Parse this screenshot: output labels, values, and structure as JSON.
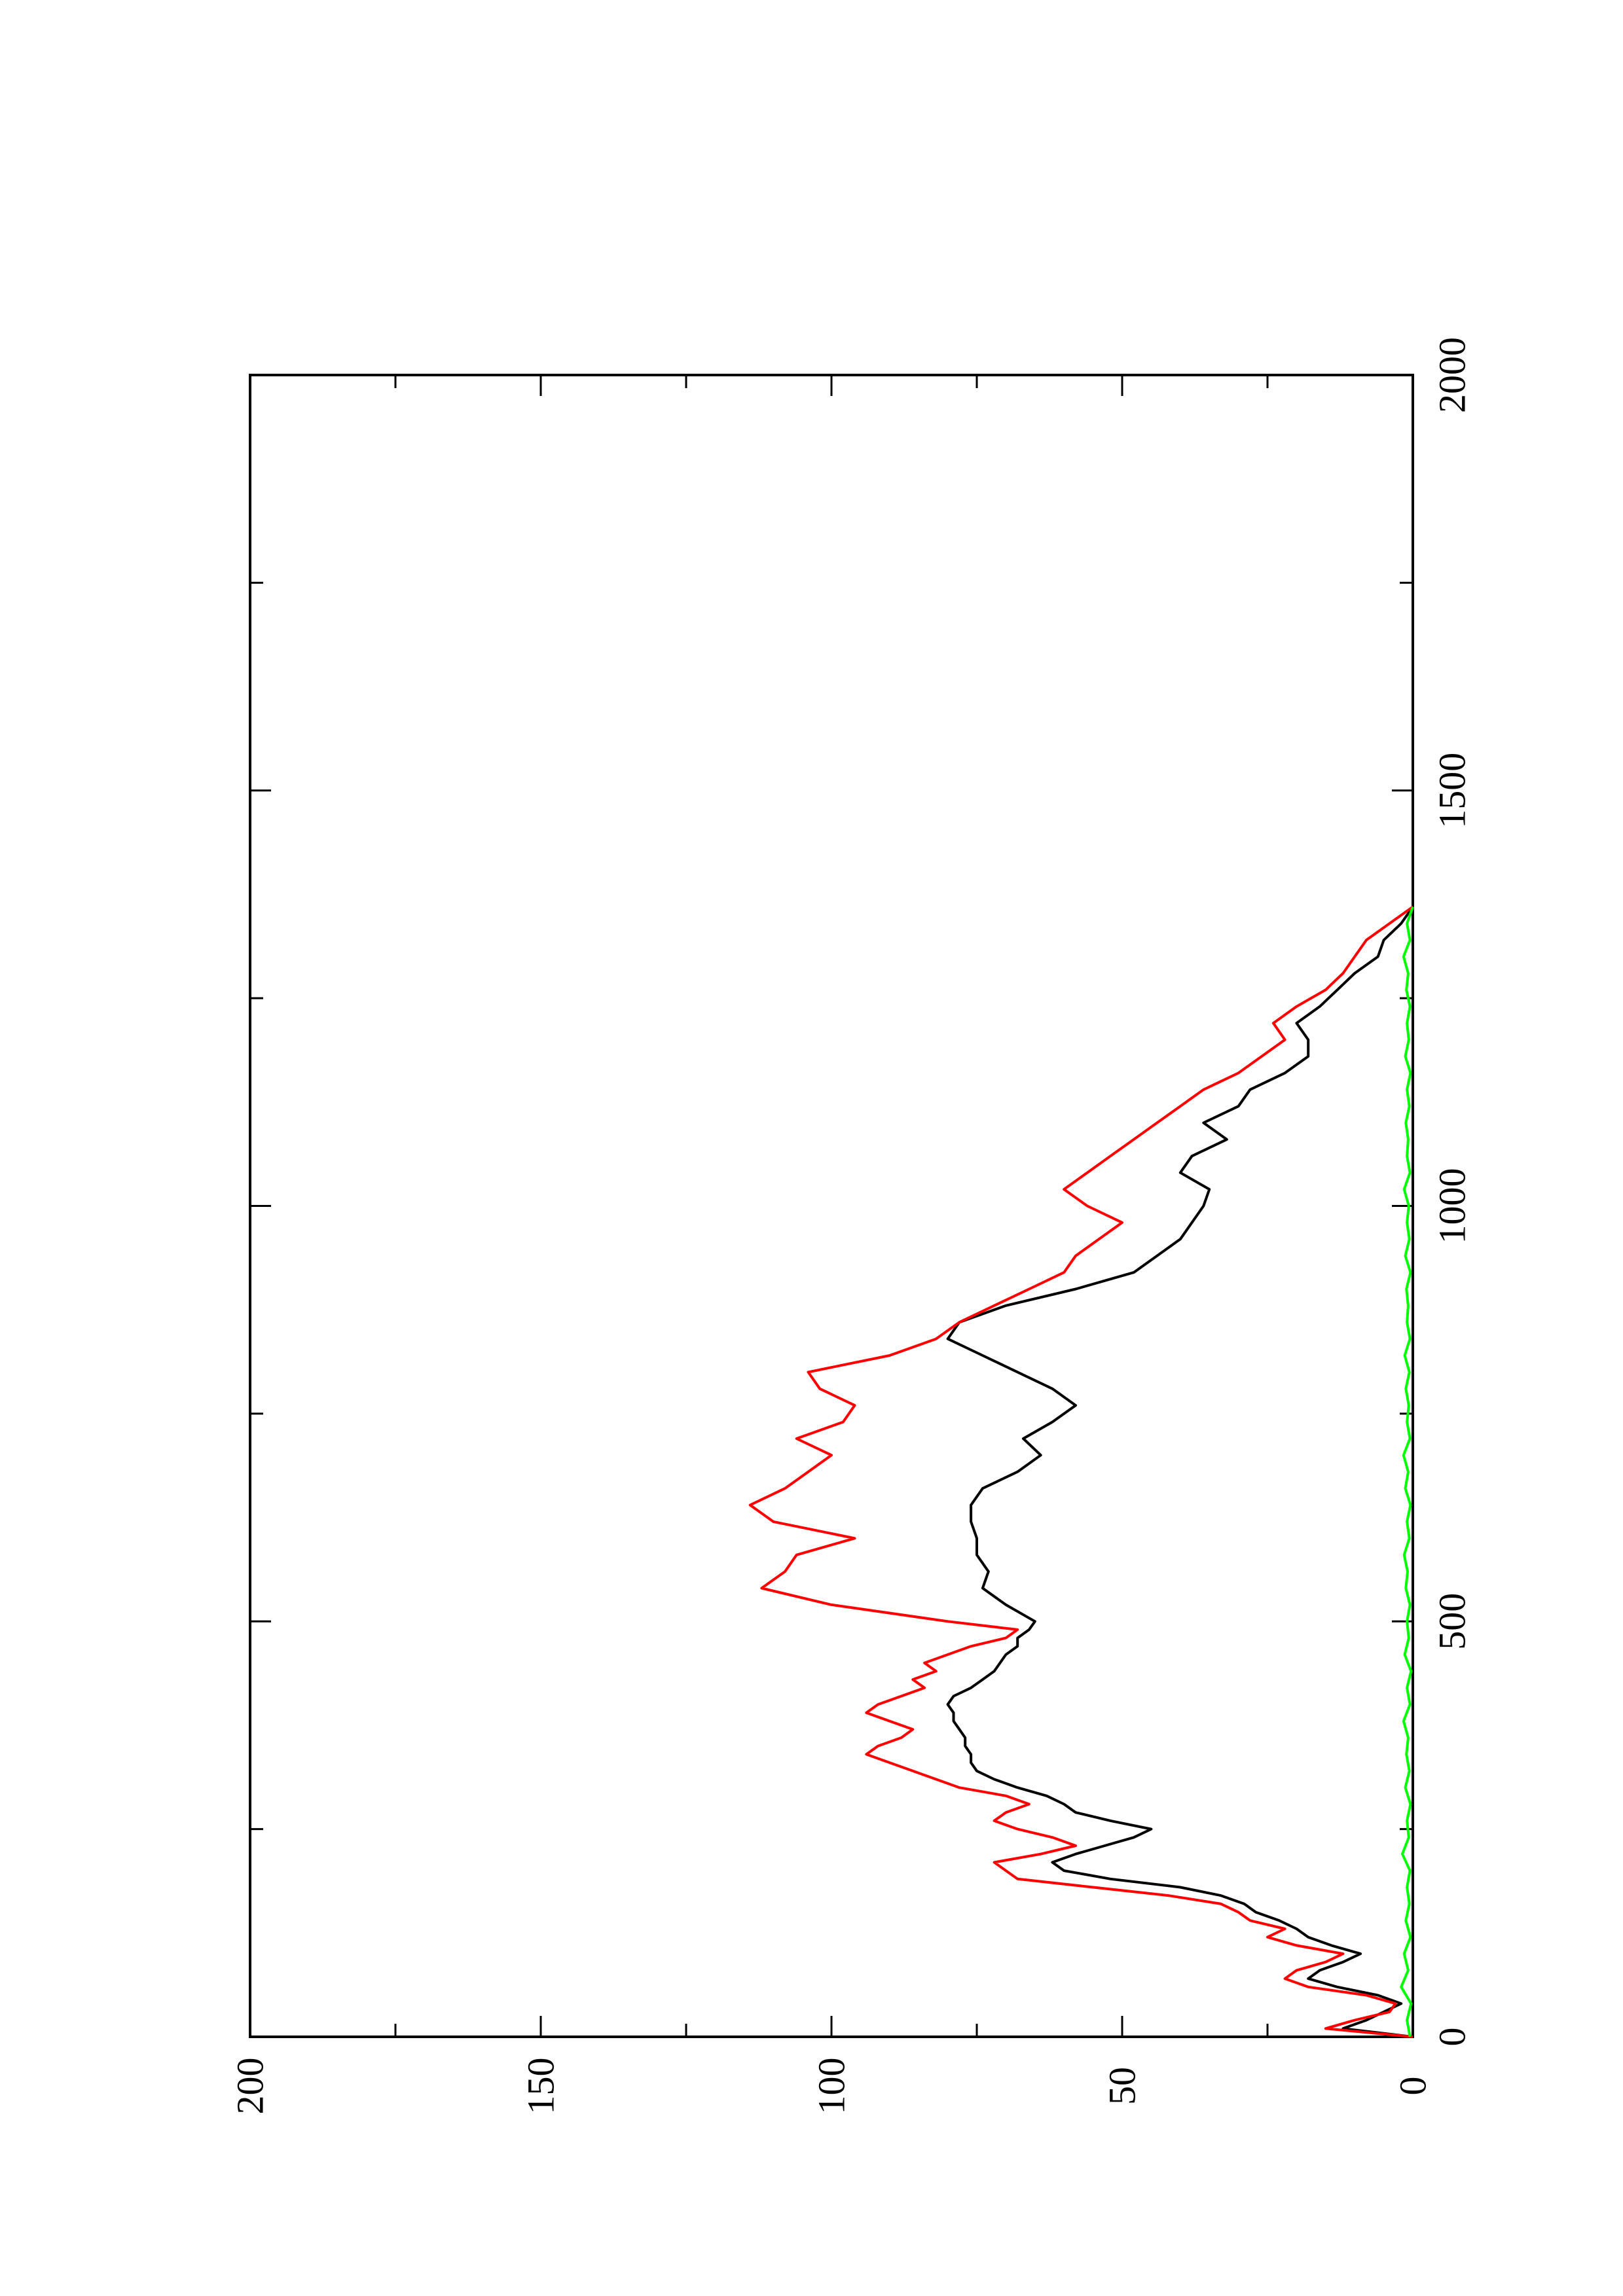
{
  "chart_data": {
    "type": "line",
    "orientation": "rotated 90 degrees counter-clockwise",
    "title": "",
    "xlabel": "",
    "ylabel": "",
    "xlim": [
      0,
      2000
    ],
    "ylim": [
      0,
      200
    ],
    "x_ticks": [
      "0",
      "500",
      "1000",
      "1500",
      "2000"
    ],
    "y_ticks": [
      "0",
      "50",
      "100",
      "150",
      "200"
    ],
    "grid": false,
    "legend": "none",
    "series": [
      {
        "color": "#000000",
        "x": [
          0,
          10,
          20,
          30,
          40,
          50,
          60,
          70,
          80,
          90,
          100,
          110,
          120,
          130,
          140,
          150,
          160,
          170,
          180,
          190,
          200,
          210,
          220,
          230,
          240,
          250,
          260,
          270,
          280,
          290,
          300,
          310,
          320,
          330,
          340,
          350,
          360,
          370,
          380,
          390,
          400,
          410,
          420,
          430,
          440,
          450,
          460,
          470,
          480,
          490,
          500,
          520,
          540,
          560,
          580,
          600,
          620,
          640,
          660,
          680,
          700,
          720,
          740,
          760,
          780,
          800,
          820,
          840,
          860,
          880,
          900,
          920,
          940,
          960,
          980,
          1000,
          1020,
          1040,
          1060,
          1080,
          1100,
          1120,
          1140,
          1160,
          1180,
          1200,
          1220,
          1240,
          1260,
          1280,
          1300,
          1320,
          1340,
          1360
        ],
        "values": [
          0,
          12,
          8,
          5,
          2,
          6,
          13,
          18,
          16,
          12,
          9,
          14,
          18,
          20,
          23,
          27,
          29,
          33,
          40,
          52,
          60,
          62,
          58,
          53,
          48,
          45,
          52,
          58,
          60,
          63,
          68,
          72,
          75,
          76,
          76,
          77,
          77,
          78,
          79,
          79,
          80,
          79,
          76,
          74,
          72,
          71,
          70,
          68,
          68,
          66,
          65,
          70,
          74,
          73,
          75,
          75,
          76,
          76,
          74,
          68,
          64,
          67,
          62,
          58,
          62,
          68,
          74,
          80,
          78,
          70,
          58,
          48,
          44,
          40,
          38,
          36,
          35,
          40,
          38,
          32,
          36,
          30,
          28,
          22,
          18,
          18,
          20,
          16,
          13,
          10,
          6,
          5,
          2,
          0
        ]
      },
      {
        "color": "#ff0000",
        "x": [
          0,
          10,
          20,
          30,
          40,
          50,
          60,
          70,
          80,
          90,
          100,
          110,
          120,
          130,
          140,
          150,
          160,
          170,
          180,
          190,
          200,
          210,
          220,
          230,
          240,
          250,
          260,
          270,
          280,
          290,
          300,
          310,
          320,
          330,
          340,
          350,
          360,
          370,
          380,
          390,
          400,
          410,
          420,
          430,
          440,
          450,
          460,
          470,
          480,
          490,
          500,
          520,
          540,
          560,
          580,
          600,
          620,
          640,
          660,
          680,
          700,
          720,
          740,
          760,
          780,
          800,
          820,
          840,
          860,
          880,
          900,
          920,
          940,
          960,
          980,
          1000,
          1020,
          1040,
          1060,
          1080,
          1100,
          1120,
          1140,
          1160,
          1180,
          1200,
          1220,
          1240,
          1260,
          1280,
          1300,
          1320,
          1340,
          1360
        ],
        "values": [
          0,
          15,
          10,
          4,
          3,
          8,
          18,
          22,
          20,
          15,
          12,
          20,
          25,
          22,
          28,
          30,
          33,
          42,
          55,
          68,
          70,
          72,
          64,
          58,
          62,
          68,
          72,
          70,
          66,
          70,
          78,
          82,
          86,
          90,
          94,
          92,
          88,
          86,
          90,
          94,
          92,
          88,
          84,
          86,
          82,
          84,
          80,
          76,
          70,
          68,
          80,
          100,
          112,
          108,
          106,
          96,
          110,
          114,
          108,
          104,
          100,
          106,
          98,
          96,
          102,
          104,
          90,
          82,
          78,
          72,
          66,
          60,
          58,
          54,
          50,
          56,
          60,
          56,
          52,
          48,
          44,
          40,
          36,
          30,
          26,
          22,
          24,
          20,
          15,
          12,
          10,
          8,
          4,
          0
        ]
      },
      {
        "color": "#00ff00",
        "x": [
          0,
          20,
          40,
          60,
          80,
          100,
          120,
          140,
          160,
          180,
          200,
          220,
          240,
          260,
          280,
          300,
          320,
          340,
          360,
          380,
          400,
          420,
          440,
          460,
          480,
          500,
          520,
          540,
          560,
          580,
          600,
          620,
          640,
          660,
          680,
          700,
          720,
          740,
          760,
          780,
          800,
          820,
          840,
          860,
          880,
          900,
          920,
          940,
          960,
          980,
          1000,
          1020,
          1040,
          1060,
          1080,
          1100,
          1120,
          1140,
          1160,
          1180,
          1200,
          1220,
          1240,
          1260,
          1280,
          1300,
          1320,
          1340,
          1360
        ],
        "values": [
          0.5,
          1,
          0.3,
          2,
          0.8,
          1.5,
          0.4,
          1.2,
          0.6,
          1,
          0.5,
          1.8,
          0.7,
          1,
          0.4,
          1.3,
          0.6,
          1.1,
          0.8,
          1.6,
          0.5,
          1,
          0.3,
          1.4,
          0.7,
          1,
          0.5,
          1.2,
          0.9,
          1.5,
          0.6,
          1,
          0.4,
          1.3,
          0.8,
          1.6,
          0.5,
          1,
          0.7,
          1.2,
          0.6,
          1.4,
          0.5,
          1,
          0.8,
          1.1,
          0.4,
          1.3,
          0.6,
          1,
          0.7,
          1.5,
          0.5,
          1,
          0.8,
          1.2,
          0.6,
          1,
          0.4,
          1.3,
          0.7,
          1,
          0.5,
          1.1,
          0.8,
          1.6,
          0.5,
          1,
          0
        ]
      }
    ]
  }
}
